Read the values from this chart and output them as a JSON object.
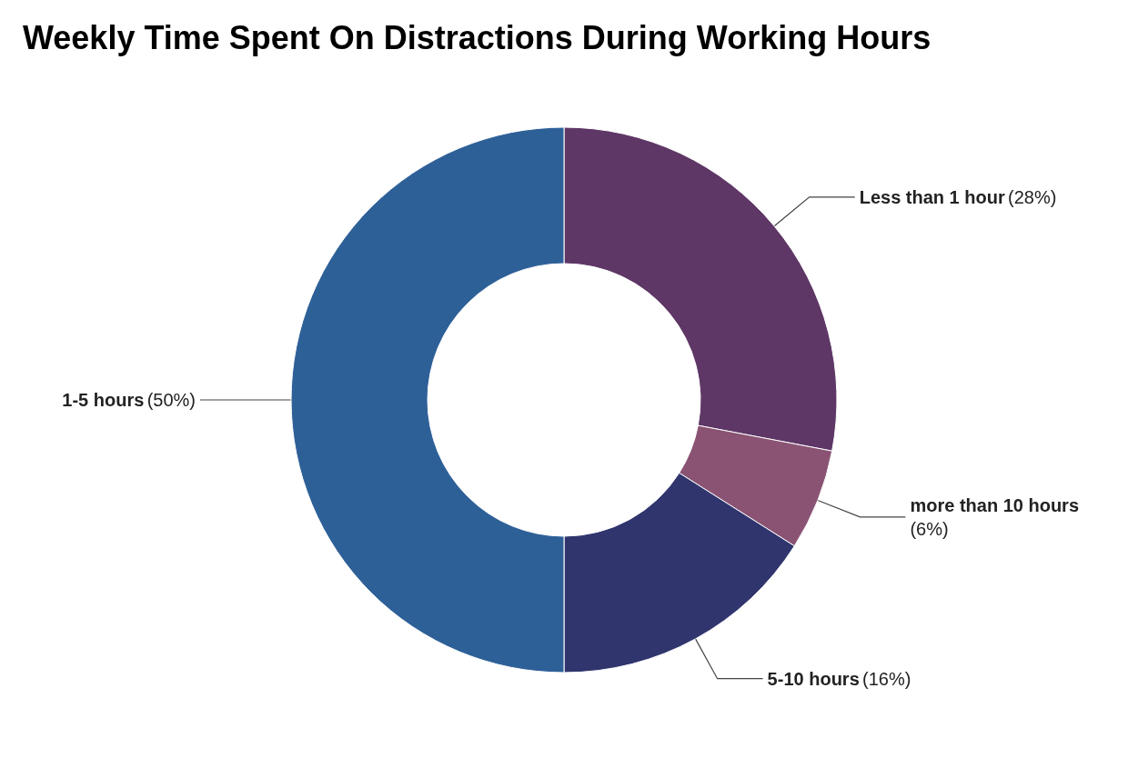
{
  "chart_data": {
    "type": "donut",
    "title": "Weekly Time Spent On Distractions During Working Hours",
    "categories": [
      "Less than 1 hour",
      "more than 10 hours",
      "5-10 hours",
      "1-5 hours"
    ],
    "values": [
      28,
      6,
      16,
      50
    ],
    "value_labels": [
      "(28%)",
      "(6%)",
      "(16%)",
      "(50%)"
    ],
    "colors": [
      "#5e3766",
      "#8a5373",
      "#30356e",
      "#2e6098"
    ],
    "legend": false
  }
}
